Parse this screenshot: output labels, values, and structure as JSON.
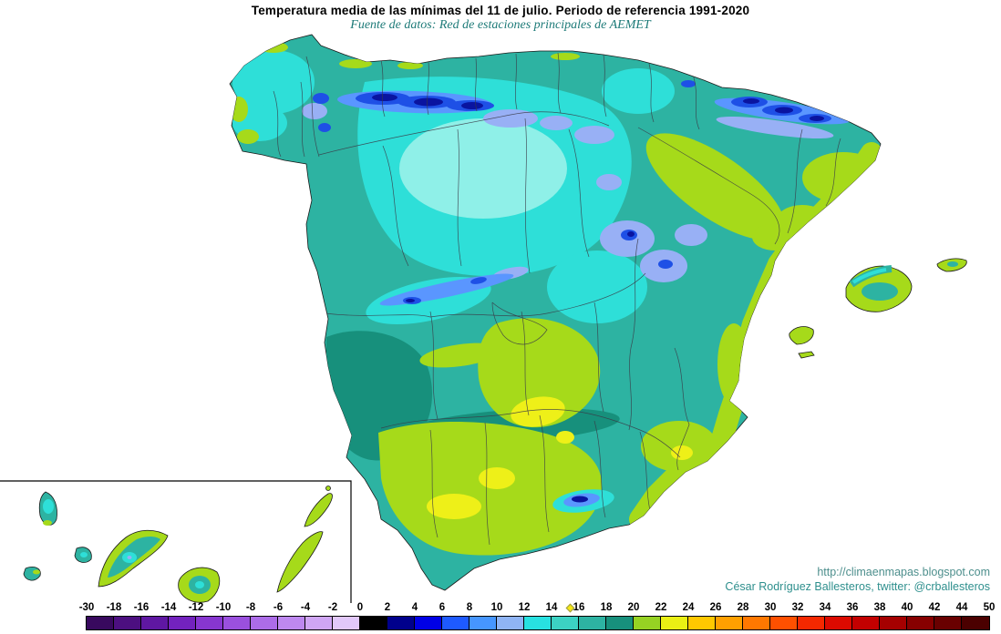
{
  "header": {
    "title": "Temperatura media de las mínimas del 11 de julio. Periodo de referencia 1991-2020",
    "subtitle": "Fuente de datos: Red de estaciones principales de AEMET"
  },
  "credits": {
    "url": "http://climaenmapas.blogspot.com",
    "author": "César Rodríguez Ballesteros, twitter: @crballesteros"
  },
  "colorbar": {
    "labels": [
      "-30",
      "-18",
      "-16",
      "-14",
      "-12",
      "-10",
      "-8",
      "-6",
      "-4",
      "-2",
      "0",
      "2",
      "4",
      "6",
      "8",
      "10",
      "12",
      "14",
      "16",
      "18",
      "20",
      "22",
      "24",
      "26",
      "28",
      "30",
      "32",
      "34",
      "36",
      "38",
      "40",
      "42",
      "44",
      "50"
    ],
    "colors": [
      "#38095E",
      "#4C0F80",
      "#5F17A2",
      "#7322BE",
      "#8736D0",
      "#9A50DE",
      "#AC6CE8",
      "#BE88F0",
      "#D0A6F5",
      "#E2C8FA",
      "#000000",
      "#00008C",
      "#0000E6",
      "#1E5AFF",
      "#4696FF",
      "#8FB4F5",
      "#28E1E1",
      "#3CD2C3",
      "#2DB3A2",
      "#17907C",
      "#96D223",
      "#EAF014",
      "#FFC800",
      "#FFA000",
      "#FF7800",
      "#FF5000",
      "#F52800",
      "#DC0A00",
      "#C30000",
      "#A50000",
      "#870000",
      "#690000",
      "#4B0000"
    ],
    "mean_marker": {
      "label": "16",
      "color": "#F5E616"
    }
  },
  "map": {
    "palette": {
      "teal": "#2DB3A2",
      "dark_teal": "#17907C",
      "cyan": "#2EDFD8",
      "light_cyan": "#8FF0E8",
      "green_yellow": "#A6DA1A",
      "yellow": "#EEF018",
      "navy": "#0A14A0",
      "blue": "#1E50E6",
      "light_blue": "#5A96FF",
      "lavender": "#98B0F5",
      "coastline": "#1A1A1A",
      "boundary": "#3A3A46"
    }
  }
}
